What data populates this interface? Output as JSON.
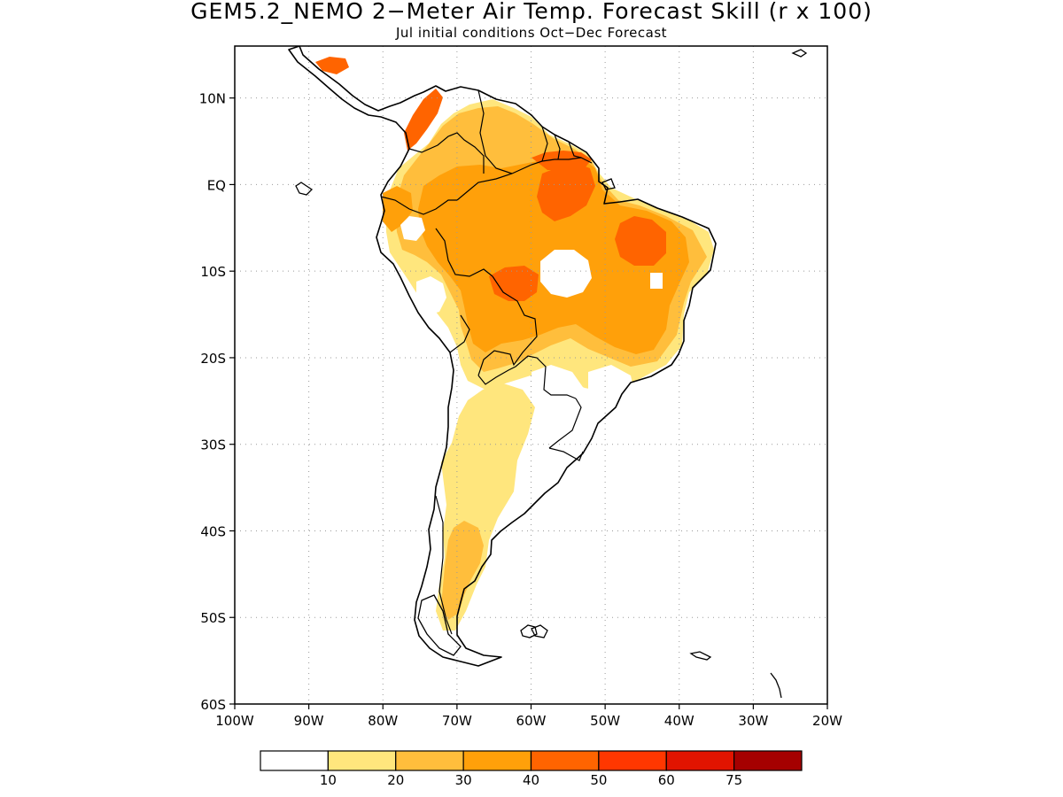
{
  "header": {
    "title": "GEM5.2_NEMO 2−Meter Air Temp. Forecast Skill (r x 100)",
    "subtitle": "Jul initial conditions   Oct−Dec Forecast"
  },
  "map": {
    "lon_range": [
      -100,
      -20
    ],
    "lat_range": [
      -60,
      16
    ],
    "x_ticks": [
      {
        "lon": -100,
        "label": "100W"
      },
      {
        "lon": -90,
        "label": "90W"
      },
      {
        "lon": -80,
        "label": "80W"
      },
      {
        "lon": -70,
        "label": "70W"
      },
      {
        "lon": -60,
        "label": "60W"
      },
      {
        "lon": -50,
        "label": "50W"
      },
      {
        "lon": -40,
        "label": "40W"
      },
      {
        "lon": -30,
        "label": "30W"
      },
      {
        "lon": -20,
        "label": "20W"
      }
    ],
    "y_ticks": [
      {
        "lat": 10,
        "label": "10N"
      },
      {
        "lat": 0,
        "label": "EQ"
      },
      {
        "lat": -10,
        "label": "10S"
      },
      {
        "lat": -20,
        "label": "20S"
      },
      {
        "lat": -30,
        "label": "30S"
      },
      {
        "lat": -40,
        "label": "40S"
      },
      {
        "lat": -50,
        "label": "50S"
      },
      {
        "lat": -60,
        "label": "60S"
      }
    ],
    "grid": "dotted",
    "colorbar": {
      "colors": [
        "#ffffff",
        "#ffe67d",
        "#ffbe3c",
        "#ffa00a",
        "#ff6400",
        "#ff3700",
        "#e11400",
        "#a50000"
      ],
      "labels": [
        "10",
        "20",
        "30",
        "40",
        "50",
        "60",
        "75"
      ]
    }
  }
}
